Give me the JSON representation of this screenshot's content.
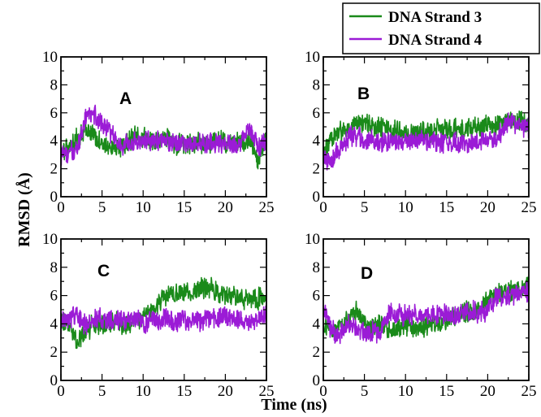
{
  "legend": {
    "items": [
      {
        "label": "DNA Strand 3",
        "color": "#1a8a1a"
      },
      {
        "label": "DNA Strand 4",
        "color": "#9b1bd6"
      }
    ]
  },
  "axis_titles": {
    "x": "Time (ns)",
    "y": "RMSD (Å)"
  },
  "chart_data": [
    {
      "type": "line",
      "panel": "A",
      "xlim": [
        0,
        25
      ],
      "ylim": [
        0,
        10
      ],
      "xticks": [
        0,
        5,
        10,
        15,
        20,
        25
      ],
      "yticks": [
        0,
        2,
        4,
        6,
        8,
        10
      ],
      "series": [
        {
          "name": "DNA Strand 3",
          "color": "#1a8a1a",
          "x": [
            0,
            1,
            2,
            3,
            4,
            5,
            6,
            7,
            8,
            9,
            10,
            11,
            12,
            13,
            14,
            15,
            16,
            17,
            18,
            19,
            20,
            21,
            22,
            23,
            24,
            25
          ],
          "y": [
            3.2,
            3.5,
            4.2,
            4.8,
            4.5,
            3.6,
            3.5,
            3.4,
            3.8,
            4.4,
            4.3,
            4.1,
            4.0,
            4.2,
            3.8,
            3.7,
            3.8,
            3.9,
            3.8,
            4.0,
            3.9,
            3.8,
            4.0,
            4.1,
            2.5,
            4.5
          ]
        },
        {
          "name": "DNA Strand 4",
          "color": "#9b1bd6",
          "x": [
            0,
            1,
            2,
            3,
            4,
            5,
            6,
            7,
            8,
            9,
            10,
            11,
            12,
            13,
            14,
            15,
            16,
            17,
            18,
            19,
            20,
            21,
            22,
            23,
            24,
            25
          ],
          "y": [
            3.0,
            3.1,
            3.4,
            5.6,
            5.9,
            5.2,
            4.6,
            3.6,
            3.8,
            3.9,
            4.0,
            3.9,
            4.1,
            3.9,
            3.8,
            3.9,
            3.7,
            3.9,
            3.8,
            3.9,
            3.8,
            3.7,
            4.0,
            4.8,
            3.5,
            4.0
          ]
        }
      ]
    },
    {
      "type": "line",
      "panel": "B",
      "xlim": [
        0,
        25
      ],
      "ylim": [
        0,
        10
      ],
      "xticks": [
        0,
        5,
        10,
        15,
        20,
        25
      ],
      "yticks": [
        0,
        2,
        4,
        6,
        8,
        10
      ],
      "series": [
        {
          "name": "DNA Strand 3",
          "color": "#1a8a1a",
          "x": [
            0,
            1,
            2,
            3,
            4,
            5,
            6,
            7,
            8,
            9,
            10,
            11,
            12,
            13,
            14,
            15,
            16,
            17,
            18,
            19,
            20,
            21,
            22,
            23,
            24,
            25
          ],
          "y": [
            3.0,
            4.2,
            4.6,
            4.9,
            5.2,
            5.3,
            5.1,
            4.9,
            4.8,
            4.7,
            4.6,
            4.6,
            4.7,
            4.6,
            4.8,
            4.8,
            4.9,
            4.9,
            5.0,
            5.0,
            5.2,
            5.1,
            5.3,
            5.5,
            5.4,
            5.2
          ]
        },
        {
          "name": "DNA Strand 4",
          "color": "#9b1bd6",
          "x": [
            0,
            1,
            2,
            3,
            4,
            5,
            6,
            7,
            8,
            9,
            10,
            11,
            12,
            13,
            14,
            15,
            16,
            17,
            18,
            19,
            20,
            21,
            22,
            23,
            24,
            25
          ],
          "y": [
            2.6,
            2.5,
            3.4,
            4.2,
            4.4,
            4.1,
            4.0,
            3.9,
            4.0,
            4.1,
            3.9,
            4.0,
            4.1,
            3.9,
            4.0,
            3.8,
            3.9,
            3.7,
            3.9,
            4.0,
            4.1,
            4.0,
            5.0,
            5.4,
            5.2,
            4.8
          ]
        }
      ]
    },
    {
      "type": "line",
      "panel": "C",
      "xlim": [
        0,
        25
      ],
      "ylim": [
        0,
        10
      ],
      "xticks": [
        0,
        5,
        10,
        15,
        20,
        25
      ],
      "yticks": [
        0,
        2,
        4,
        6,
        8,
        10
      ],
      "series": [
        {
          "name": "DNA Strand 3",
          "color": "#1a8a1a",
          "x": [
            0,
            1,
            2,
            3,
            4,
            5,
            6,
            7,
            8,
            9,
            10,
            11,
            12,
            13,
            14,
            15,
            16,
            17,
            18,
            19,
            20,
            21,
            22,
            23,
            24,
            25
          ],
          "y": [
            4.3,
            3.8,
            2.6,
            3.5,
            3.9,
            4.1,
            4.0,
            4.2,
            3.8,
            4.3,
            4.5,
            4.9,
            5.6,
            6.2,
            6.0,
            6.3,
            6.1,
            6.5,
            6.6,
            6.2,
            5.9,
            6.0,
            5.8,
            5.7,
            5.8,
            5.9
          ]
        },
        {
          "name": "DNA Strand 4",
          "color": "#9b1bd6",
          "x": [
            0,
            1,
            2,
            3,
            4,
            5,
            6,
            7,
            8,
            9,
            10,
            11,
            12,
            13,
            14,
            15,
            16,
            17,
            18,
            19,
            20,
            21,
            22,
            23,
            24,
            25
          ],
          "y": [
            4.1,
            4.3,
            4.6,
            3.9,
            4.2,
            4.4,
            4.1,
            4.3,
            4.2,
            4.4,
            4.1,
            4.3,
            4.2,
            4.4,
            4.1,
            4.3,
            4.4,
            4.2,
            4.5,
            4.4,
            4.6,
            4.3,
            4.2,
            4.0,
            4.3,
            4.8
          ]
        }
      ]
    },
    {
      "type": "line",
      "panel": "D",
      "xlim": [
        0,
        25
      ],
      "ylim": [
        0,
        10
      ],
      "xticks": [
        0,
        5,
        10,
        15,
        20,
        25
      ],
      "yticks": [
        0,
        2,
        4,
        6,
        8,
        10
      ],
      "series": [
        {
          "name": "DNA Strand 3",
          "color": "#1a8a1a",
          "x": [
            0,
            1,
            2,
            3,
            4,
            5,
            6,
            7,
            8,
            9,
            10,
            11,
            12,
            13,
            14,
            15,
            16,
            17,
            18,
            19,
            20,
            21,
            22,
            23,
            24,
            25
          ],
          "y": [
            4.0,
            3.5,
            3.9,
            4.3,
            4.9,
            3.8,
            3.6,
            3.9,
            3.5,
            3.7,
            3.9,
            3.6,
            3.7,
            3.9,
            4.1,
            4.3,
            4.6,
            4.8,
            4.9,
            5.1,
            5.8,
            6.2,
            6.3,
            6.4,
            6.6,
            6.6
          ]
        },
        {
          "name": "DNA Strand 4",
          "color": "#9b1bd6",
          "x": [
            0,
            1,
            2,
            3,
            4,
            5,
            6,
            7,
            8,
            9,
            10,
            11,
            12,
            13,
            14,
            15,
            16,
            17,
            18,
            19,
            20,
            21,
            22,
            23,
            24,
            25
          ],
          "y": [
            5.2,
            3.6,
            3.2,
            4.0,
            3.8,
            3.3,
            3.4,
            3.5,
            4.8,
            4.7,
            4.6,
            4.6,
            4.7,
            4.6,
            4.7,
            4.8,
            4.7,
            4.8,
            4.9,
            4.8,
            5.0,
            5.8,
            6.0,
            6.1,
            6.2,
            6.2
          ]
        }
      ]
    }
  ]
}
